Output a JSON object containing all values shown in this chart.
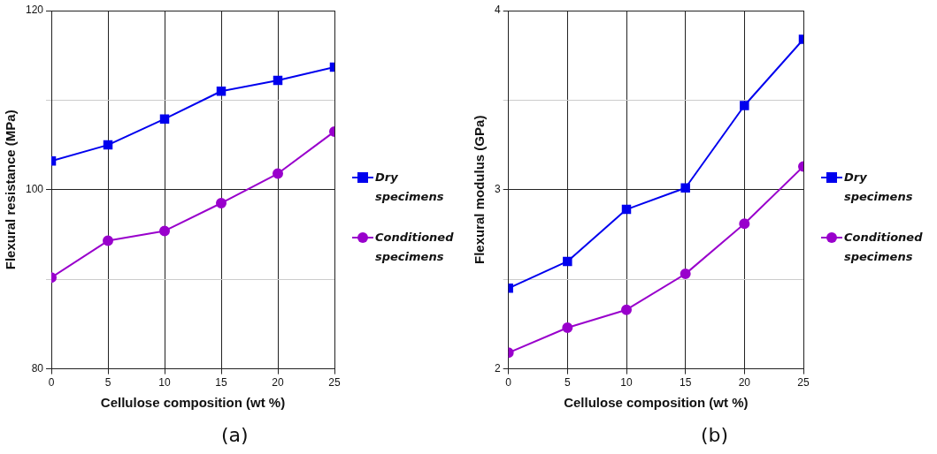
{
  "chart_data": [
    {
      "type": "line",
      "xlabel": "Cellulose composition (wt %)",
      "ylabel": "Flexural resistance (MPa)",
      "x": [
        0,
        5,
        10,
        15,
        20,
        25
      ],
      "xlim": [
        0,
        25
      ],
      "xticks": [
        0,
        5,
        10,
        15,
        20,
        25
      ],
      "ylim": [
        80,
        120
      ],
      "yticks": [
        80,
        {
          "value": 90,
          "label": null
        },
        100,
        {
          "value": 110,
          "label": null
        },
        120
      ],
      "grid": true,
      "legend": "right",
      "annotations": [
        "(a)"
      ],
      "series": [
        {
          "name": "Dry specimens",
          "color": "#0000ee",
          "marker": "square",
          "values": [
            103.2,
            105.0,
            107.9,
            111.0,
            112.2,
            113.7
          ]
        },
        {
          "name": "Conditioned specimens",
          "color": "#9900cc",
          "marker": "circle",
          "values": [
            90.2,
            94.3,
            95.4,
            98.5,
            101.8,
            106.5
          ]
        }
      ]
    },
    {
      "type": "line",
      "xlabel": "Cellulose composition (wt %)",
      "ylabel": "Flexural modulus (GPa)",
      "x": [
        0,
        5,
        10,
        15,
        20,
        25
      ],
      "xlim": [
        0,
        25
      ],
      "xticks": [
        0,
        5,
        10,
        15,
        20,
        25
      ],
      "ylim": [
        2,
        4
      ],
      "yticks": [
        2,
        {
          "value": 2.5,
          "label": null
        },
        3,
        {
          "value": 3.5,
          "label": null
        },
        4
      ],
      "grid": true,
      "legend": "right",
      "annotations": [
        "(b)"
      ],
      "series": [
        {
          "name": "Dry specimens",
          "color": "#0000ee",
          "marker": "square",
          "values": [
            2.45,
            2.6,
            2.89,
            3.01,
            3.47,
            3.84
          ]
        },
        {
          "name": "Conditioned specimens",
          "color": "#9900cc",
          "marker": "circle",
          "values": [
            2.09,
            2.23,
            2.33,
            2.53,
            2.81,
            3.13
          ]
        }
      ]
    }
  ]
}
